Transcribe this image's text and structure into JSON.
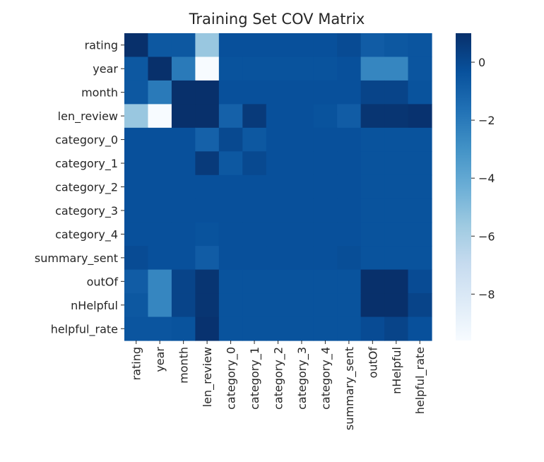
{
  "chart_data": {
    "type": "heatmap",
    "title": "Training Set COV Matrix",
    "xlabel": "",
    "ylabel": "",
    "labels": [
      "rating",
      "year",
      "month",
      "len_review",
      "category_0",
      "category_1",
      "category_2",
      "category_3",
      "category_4",
      "summary_sent",
      "outOf",
      "nHelpful",
      "helpful_rate"
    ],
    "colormap": "Blues",
    "vmin": -9.6,
    "vmax": 1.0,
    "colorbar_ticks": [
      0,
      -2,
      -4,
      -6,
      -8
    ],
    "colorbar_tick_labels": [
      "0",
      "−2",
      "−4",
      "−6",
      "−8"
    ],
    "values": [
      [
        1.0,
        -0.6,
        -0.6,
        -5.5,
        -0.3,
        -0.3,
        -0.3,
        -0.3,
        -0.3,
        -0.1,
        -0.8,
        -0.6,
        -0.5
      ],
      [
        -0.6,
        1.0,
        -2.0,
        -9.6,
        -0.4,
        -0.4,
        -0.4,
        -0.4,
        -0.4,
        -0.3,
        -2.5,
        -2.5,
        -0.5
      ],
      [
        -0.6,
        -2.0,
        1.0,
        1.0,
        -0.3,
        -0.3,
        -0.3,
        -0.3,
        -0.3,
        -0.3,
        0.2,
        0.2,
        -0.4
      ],
      [
        -5.5,
        -9.6,
        1.0,
        1.0,
        -1.0,
        0.6,
        -0.3,
        -0.3,
        -0.4,
        -0.8,
        0.8,
        0.8,
        0.9
      ],
      [
        -0.3,
        -0.3,
        -0.3,
        -1.0,
        0.0,
        -0.6,
        -0.3,
        -0.3,
        -0.3,
        -0.3,
        -0.4,
        -0.4,
        -0.4
      ],
      [
        -0.3,
        -0.3,
        -0.3,
        0.6,
        -0.6,
        0.0,
        -0.3,
        -0.3,
        -0.3,
        -0.3,
        -0.4,
        -0.4,
        -0.4
      ],
      [
        -0.3,
        -0.3,
        -0.3,
        -0.3,
        -0.3,
        -0.3,
        -0.3,
        -0.3,
        -0.3,
        -0.3,
        -0.4,
        -0.4,
        -0.4
      ],
      [
        -0.3,
        -0.3,
        -0.3,
        -0.3,
        -0.3,
        -0.3,
        -0.3,
        -0.3,
        -0.3,
        -0.3,
        -0.4,
        -0.4,
        -0.4
      ],
      [
        -0.3,
        -0.3,
        -0.3,
        -0.4,
        -0.3,
        -0.3,
        -0.3,
        -0.3,
        -0.3,
        -0.3,
        -0.4,
        -0.4,
        -0.4
      ],
      [
        -0.1,
        -0.3,
        -0.3,
        -0.8,
        -0.3,
        -0.3,
        -0.3,
        -0.3,
        -0.3,
        -0.2,
        -0.4,
        -0.4,
        -0.4
      ],
      [
        -0.8,
        -2.5,
        0.2,
        0.8,
        -0.4,
        -0.4,
        -0.4,
        -0.4,
        -0.4,
        -0.4,
        1.0,
        1.0,
        -0.1
      ],
      [
        -0.6,
        -2.5,
        0.2,
        0.8,
        -0.4,
        -0.4,
        -0.4,
        -0.4,
        -0.4,
        -0.4,
        1.0,
        1.0,
        0.2
      ],
      [
        -0.5,
        -0.5,
        -0.4,
        0.9,
        -0.4,
        -0.4,
        -0.4,
        -0.4,
        -0.4,
        -0.4,
        -0.1,
        0.2,
        -0.3
      ]
    ]
  }
}
